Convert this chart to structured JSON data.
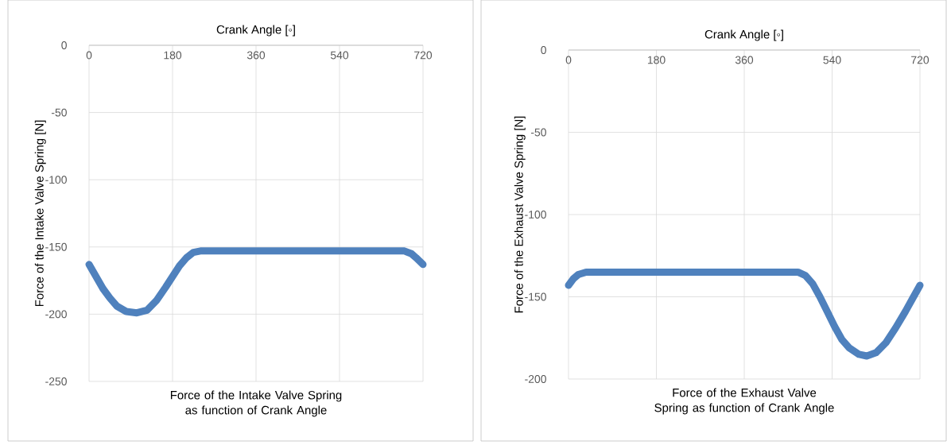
{
  "chart_data": [
    {
      "type": "line",
      "title": "Force of the Intake Valve Spring as function of Crank Angle",
      "xlabel": "Crank Angle [◦]",
      "ylabel": "Force of the Intake Valve Spring [N]",
      "x": [
        0,
        15,
        30,
        45,
        60,
        80,
        103,
        125,
        145,
        165,
        180,
        195,
        210,
        225,
        240,
        360,
        540,
        680,
        695,
        705,
        720
      ],
      "values": [
        -163,
        -172,
        -181,
        -188,
        -194,
        -198,
        -199,
        -197,
        -190,
        -180,
        -172,
        -164,
        -158,
        -154,
        -153,
        -153,
        -153,
        -153,
        -155,
        -158,
        -163
      ],
      "color": "#4f81bd",
      "xlim": [
        0,
        720
      ],
      "ylim": [
        -250,
        0
      ],
      "xticks": [
        0,
        180,
        360,
        540,
        720
      ],
      "yticks": [
        -250,
        -200,
        -150,
        -100,
        -50,
        0
      ],
      "grid": true,
      "line_style": "solid"
    },
    {
      "type": "line",
      "title": "Force of the Exhaust Valve Spring as function of Crank Angle",
      "xlabel": "Crank Angle [◦]",
      "ylabel": "Force of the Exhaust Valve Spring  [N]",
      "x": [
        0,
        10,
        20,
        36,
        180,
        360,
        470,
        485,
        500,
        515,
        530,
        545,
        560,
        575,
        595,
        611,
        630,
        650,
        670,
        690,
        705,
        720
      ],
      "values": [
        -143,
        -139,
        -136.5,
        -135,
        -135,
        -135,
        -135,
        -137,
        -142,
        -150,
        -159,
        -168,
        -176,
        -181,
        -185,
        -186,
        -184,
        -178,
        -169,
        -159,
        -151,
        -143
      ],
      "color": "#4f81bd",
      "xlim": [
        0,
        720
      ],
      "ylim": [
        -200,
        0
      ],
      "xticks": [
        0,
        180,
        360,
        540,
        720
      ],
      "yticks": [
        -200,
        -150,
        -100,
        -50,
        0
      ],
      "grid": true,
      "line_style": "solid"
    }
  ]
}
